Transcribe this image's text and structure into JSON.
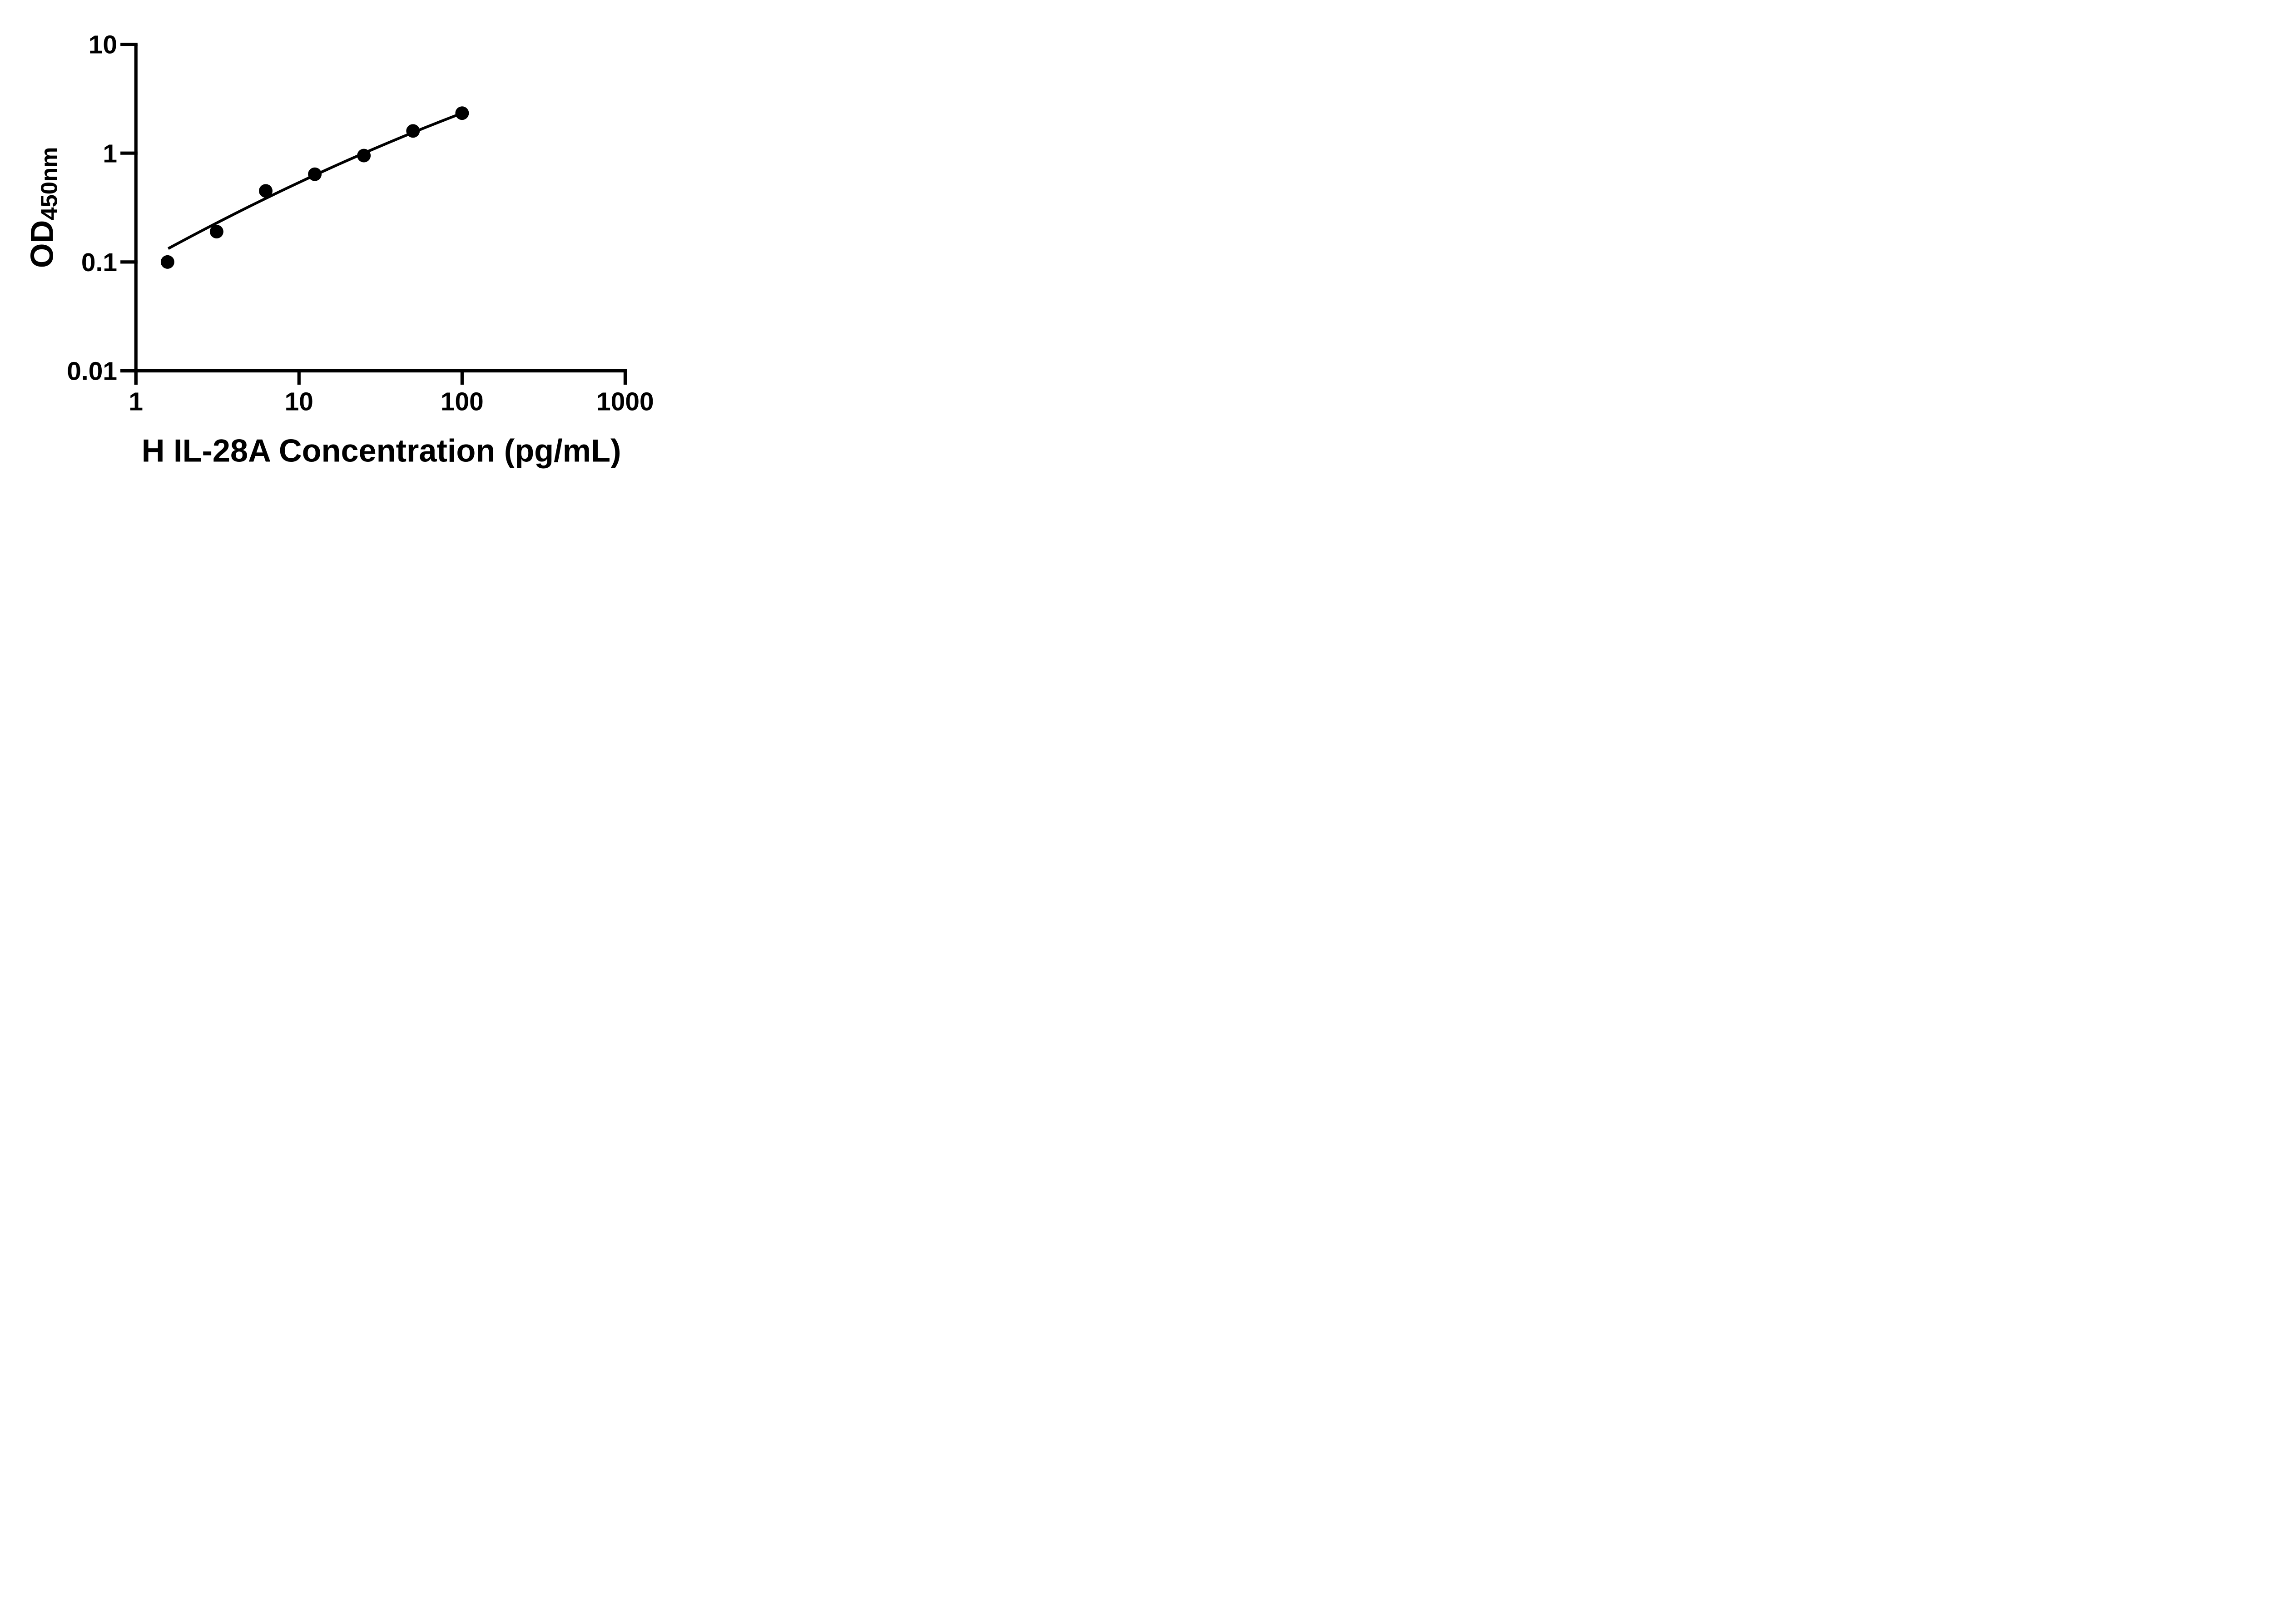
{
  "figure": {
    "background_color": "#ffffff",
    "ink_color": "#000000"
  },
  "chart_data": {
    "type": "scatter",
    "title": "",
    "xlabel": "H IL-28A Concentration (pg/mL)",
    "ylabel_main": "OD",
    "ylabel_subscript": "450nm",
    "x_scale": "log10",
    "y_scale": "log10",
    "xlim": [
      1,
      1000
    ],
    "ylim": [
      0.01,
      10
    ],
    "grid": false,
    "legend": false,
    "x_ticks": [
      {
        "value": 1,
        "label": "1"
      },
      {
        "value": 10,
        "label": "10"
      },
      {
        "value": 100,
        "label": "100"
      },
      {
        "value": 1000,
        "label": "1000"
      }
    ],
    "y_ticks": [
      {
        "value": 10,
        "label": "10"
      },
      {
        "value": 1,
        "label": "1"
      },
      {
        "value": 0.1,
        "label": "0.1"
      },
      {
        "value": 0.01,
        "label": "0.01"
      }
    ],
    "series": [
      {
        "name": "standard-curve-points",
        "marker": "circle",
        "color": "#000000",
        "points": [
          {
            "x": 1.5625,
            "y": 0.1
          },
          {
            "x": 3.125,
            "y": 0.19
          },
          {
            "x": 6.25,
            "y": 0.45
          },
          {
            "x": 12.5,
            "y": 0.64
          },
          {
            "x": 25,
            "y": 0.95
          },
          {
            "x": 50,
            "y": 1.6
          },
          {
            "x": 100,
            "y": 2.33
          }
        ]
      }
    ],
    "fit_curve": {
      "name": "log-log-quadratic-fit",
      "model": "log10(y) = a + b*u + c*u^2, u = log10(x)",
      "a": -1.04,
      "b": 0.8374,
      "c": -0.0669,
      "u_range": [
        0.198,
        2.0
      ],
      "samples": 40
    }
  }
}
